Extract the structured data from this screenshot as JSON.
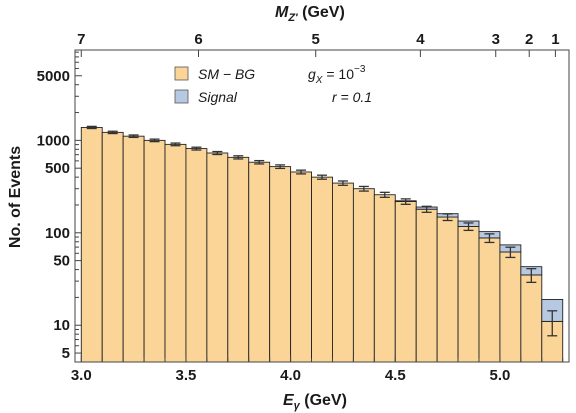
{
  "chart_data": {
    "type": "bar",
    "stacked": true,
    "xlabel_main": "E",
    "xlabel_sub": "γ",
    "xlabel_unit": " (GeV)",
    "ylabel": "No. of Events",
    "top_label_main": "M",
    "top_label_sub": "Z'",
    "top_label_unit": " (GeV)",
    "ylog": true,
    "xlim": [
      2.97,
      5.33
    ],
    "ylim": [
      4,
      9500
    ],
    "bin_width": 0.1,
    "x_ticks": [
      "3.0",
      "3.5",
      "4.0",
      "4.5",
      "5.0"
    ],
    "x_tick_values": [
      3.0,
      3.5,
      4.0,
      4.5,
      5.0
    ],
    "y_ticks": [
      "5",
      "10",
      "50",
      "100",
      "500",
      "1000",
      "5000"
    ],
    "y_tick_values": [
      5,
      10,
      50,
      100,
      500,
      1000,
      5000
    ],
    "top_ticks": [
      "7",
      "6",
      "5",
      "4",
      "3",
      "2",
      "1"
    ],
    "top_tick_values": [
      7,
      6,
      5,
      4,
      3,
      2,
      1
    ],
    "top_tick_positions_ev": [
      3.0,
      3.56,
      4.12,
      4.62,
      4.98,
      5.14,
      5.265
    ],
    "series": [
      {
        "name": "SM − BG",
        "color": "#fbd598",
        "values": [
          1380,
          1220,
          1110,
          1000,
          905,
          815,
          730,
          655,
          580,
          520,
          455,
          400,
          345,
          300,
          258,
          218,
          180,
          148,
          117,
          88,
          62,
          35,
          11
        ]
      },
      {
        "name": "Signal",
        "color": "#b7c9e2",
        "values": [
          0,
          0,
          0,
          0,
          0,
          0,
          0,
          0,
          0,
          0,
          0,
          0,
          0,
          0,
          0,
          4,
          10,
          13,
          17,
          15,
          12,
          8,
          8
        ]
      }
    ],
    "bin_starts": [
      3.0,
      3.1,
      3.2,
      3.3,
      3.4,
      3.5,
      3.6,
      3.7,
      3.8,
      3.9,
      4.0,
      4.1,
      4.2,
      4.3,
      4.4,
      4.5,
      4.6,
      4.7,
      4.8,
      4.9,
      5.0,
      5.1,
      5.2
    ],
    "legend_position": "top-left",
    "annotations": {
      "gx_main": "g",
      "gx_sub": "X",
      "gx_value": " = 10",
      "gx_exp": "−3",
      "r_text": "r = 0.1"
    }
  }
}
